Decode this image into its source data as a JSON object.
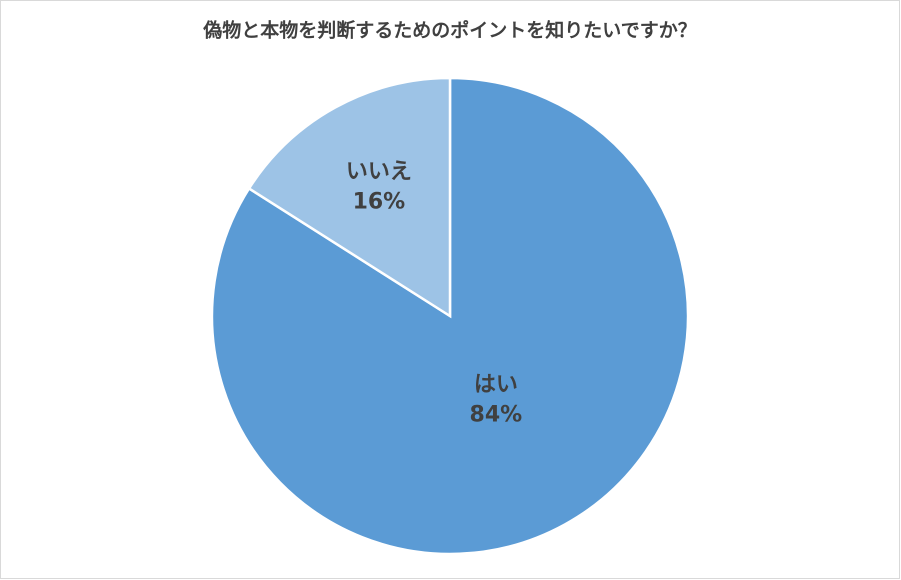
{
  "chart_data": {
    "type": "pie",
    "title": "偽物と本物を判断するためのポイントを知りたいですか？",
    "categories": [
      "はい",
      "いいえ"
    ],
    "values": [
      84,
      16
    ],
    "value_labels": [
      "84%",
      "16%"
    ],
    "colors": [
      "#5b9bd5",
      "#9dc3e6"
    ]
  }
}
